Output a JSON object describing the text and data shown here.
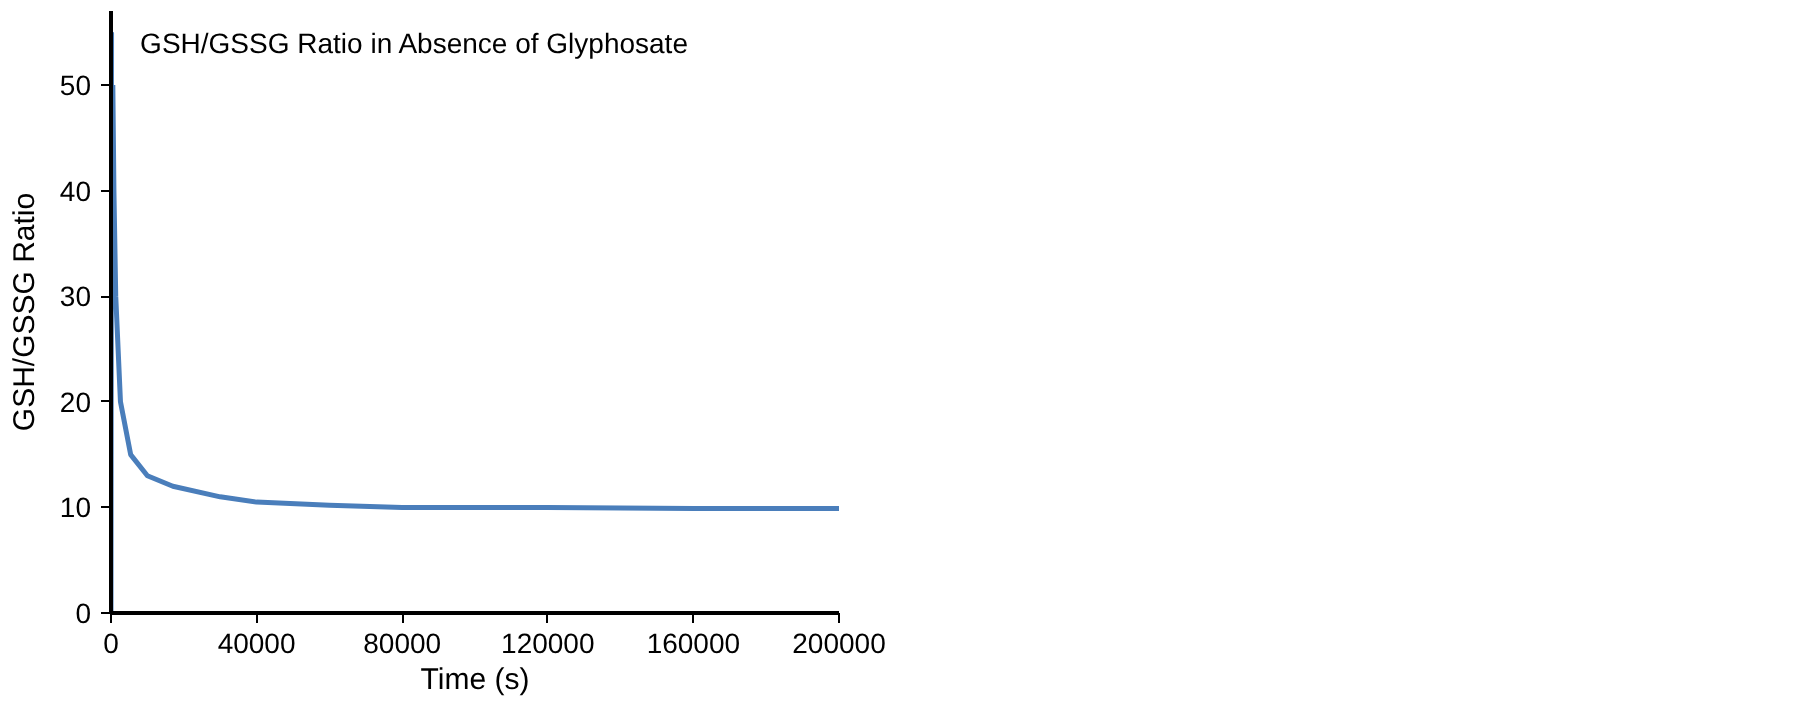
{
  "chart_data": {
    "type": "line",
    "title": "GSH/GSSG Ratio in Absence of Glyphosate",
    "xlabel": "Time (s)",
    "ylabel": "GSH/GSSG Ratio",
    "x": [
      0,
      150,
      300,
      500,
      800,
      1300,
      2600,
      5400,
      10000,
      17000,
      30000,
      40000,
      60000,
      80000,
      120000,
      160000,
      200000
    ],
    "series": [
      {
        "color": "#4a7ebb",
        "values": [
          0,
          55,
          null,
          50,
          40,
          30,
          20,
          15,
          13,
          12,
          11,
          10.5,
          10.2,
          10,
          10,
          9.9,
          9.9
        ]
      }
    ],
    "xlim": [
      0,
      200000
    ],
    "ylim": [
      0,
      57
    ],
    "xticks": [
      0,
      40000,
      80000,
      120000,
      160000,
      200000
    ],
    "yticks": [
      0,
      10,
      20,
      30,
      40,
      50
    ],
    "grid": false,
    "marker": "none",
    "line_style": "solid"
  }
}
